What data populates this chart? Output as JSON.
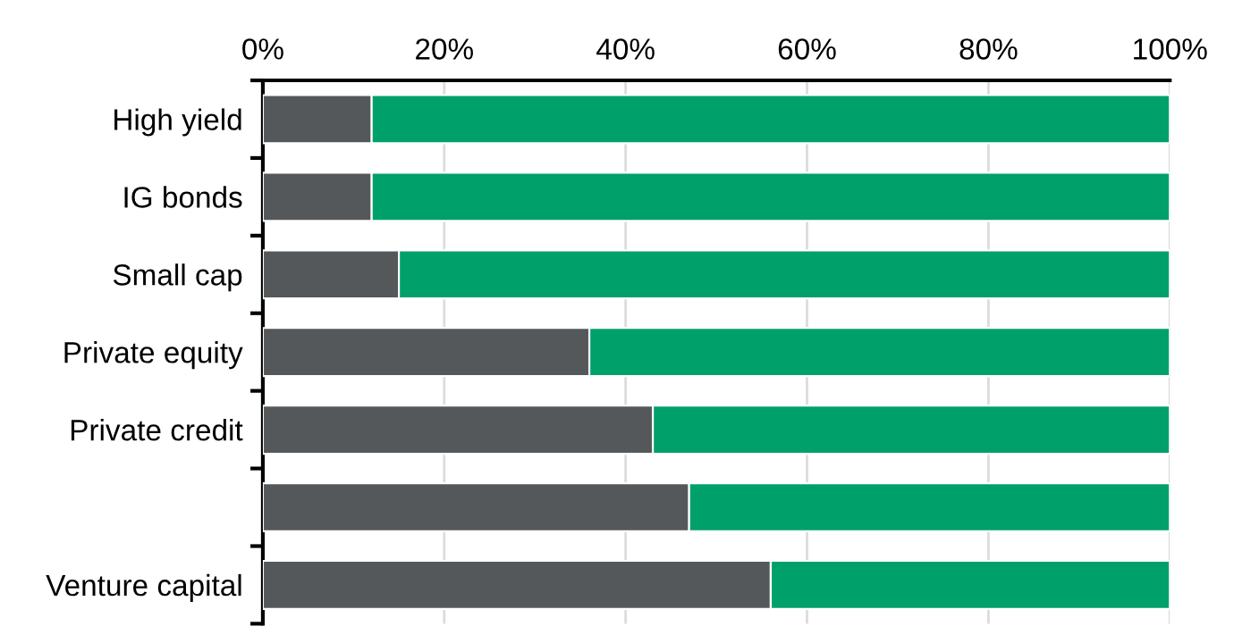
{
  "chart_data": {
    "type": "bar",
    "orientation": "horizontal",
    "stacked": true,
    "categories": [
      "High yield",
      "IG bonds",
      "Small cap",
      "Private equity",
      "Private credit",
      null,
      "Venture capital"
    ],
    "series": [
      {
        "color": "#55585a",
        "values": [
          12,
          12,
          15,
          36,
          43,
          47,
          56
        ]
      },
      {
        "color": "#00a06b",
        "values": [
          88,
          88,
          85,
          64,
          57,
          53,
          44
        ]
      }
    ],
    "xlim": [
      0,
      100
    ],
    "xticks": [
      {
        "value": 0,
        "label": "0%"
      },
      {
        "value": 20,
        "label": "20%"
      },
      {
        "value": 40,
        "label": "40%"
      },
      {
        "value": 60,
        "label": "60%"
      },
      {
        "value": 80,
        "label": "80%"
      },
      {
        "value": 100,
        "label": "100%"
      }
    ],
    "grid": "x",
    "legend": false
  }
}
